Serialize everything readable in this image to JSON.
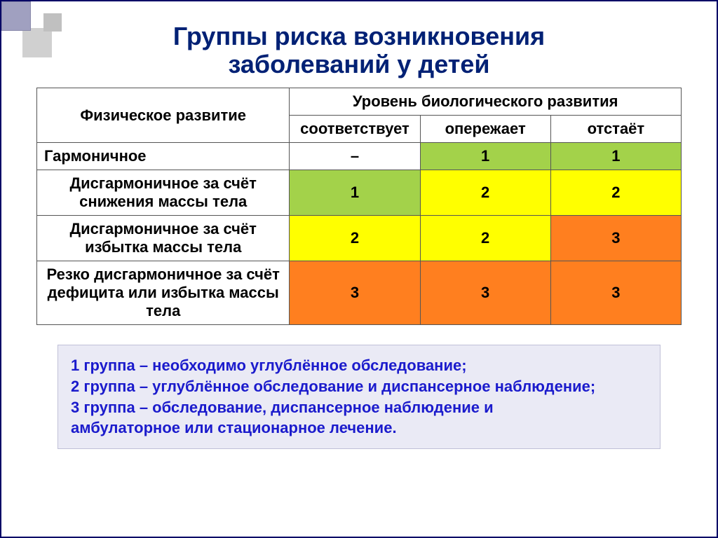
{
  "title_line1": "Группы риска возникновения",
  "title_line2": "заболеваний у детей",
  "table": {
    "header_phys": "Физическое развитие",
    "header_bio": "Уровень биологического развития",
    "sub_headers": [
      "соответствует",
      "опережает",
      "отстаёт"
    ],
    "rows": [
      {
        "label": "Гармоничное",
        "cells": [
          {
            "v": "–",
            "bg": "#ffffff"
          },
          {
            "v": "1",
            "bg": "#a3d24a"
          },
          {
            "v": "1",
            "bg": "#a3d24a"
          }
        ]
      },
      {
        "label": "Дисгармоничное за счёт снижения массы тела",
        "cells": [
          {
            "v": "1",
            "bg": "#a3d24a"
          },
          {
            "v": "2",
            "bg": "#ffff00"
          },
          {
            "v": "2",
            "bg": "#ffff00"
          }
        ]
      },
      {
        "label": "Дисгармоничное за счёт избытка массы тела",
        "cells": [
          {
            "v": "2",
            "bg": "#ffff00"
          },
          {
            "v": "2",
            "bg": "#ffff00"
          },
          {
            "v": "3",
            "bg": "#ff7f1f"
          }
        ]
      },
      {
        "label": "Резко дисгармоничное за счёт дефицита или избытка массы тела",
        "cells": [
          {
            "v": "3",
            "bg": "#ff7f1f"
          },
          {
            "v": "3",
            "bg": "#ff7f1f"
          },
          {
            "v": "3",
            "bg": "#ff7f1f"
          }
        ]
      }
    ]
  },
  "legend": [
    "1 группа – необходимо углублённое обследование;",
    "2 группа – углублённое обследование и диспансерное наблюдение;",
    "3 группа – обследование, диспансерное наблюдение и",
    "амбулаторное или стационарное лечение."
  ],
  "colors": {
    "title": "#002175",
    "legend_text": "#1b1bcc",
    "legend_bg": "#eaeaf5",
    "border": "#555555",
    "green": "#a3d24a",
    "yellow": "#ffff00",
    "orange": "#ff7f1f"
  }
}
